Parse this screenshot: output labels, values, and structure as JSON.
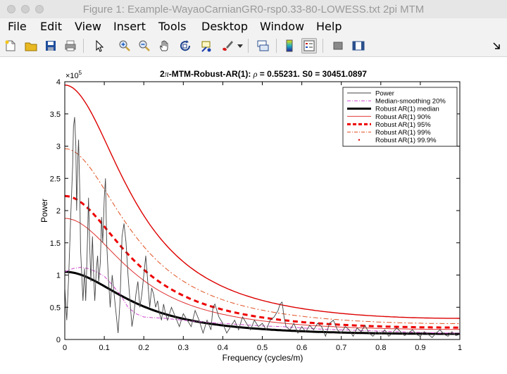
{
  "window": {
    "title": "Figure 1: Example-WayaoCarnianGR0-rsp0.33-80-LOWESS.txt 2pi MTM"
  },
  "menu": [
    "File",
    "Edit",
    "View",
    "Insert",
    "Tools",
    "Desktop",
    "Window",
    "Help"
  ],
  "toolbar": [
    {
      "name": "new-figure-icon"
    },
    {
      "name": "open-file-icon"
    },
    {
      "name": "save-icon"
    },
    {
      "name": "print-icon"
    },
    {
      "name": "pointer-icon"
    },
    {
      "name": "zoom-in-icon"
    },
    {
      "name": "zoom-out-icon"
    },
    {
      "name": "pan-hand-icon"
    },
    {
      "name": "rotate-3d-icon"
    },
    {
      "name": "data-cursor-icon"
    },
    {
      "name": "brush-icon"
    },
    {
      "name": "brush-dropdown-icon"
    },
    {
      "name": "link-plot-icon"
    },
    {
      "name": "colorbar-icon"
    },
    {
      "name": "legend-icon"
    },
    {
      "name": "hide-plot-tools-icon"
    },
    {
      "name": "show-plot-tools-icon"
    },
    {
      "name": "dock-arrow-icon"
    }
  ],
  "chart_data": {
    "type": "line",
    "title_prefix": "2",
    "title_pi": "π",
    "title_main": "-MTM-Robust-AR(1): ",
    "title_rho": "ρ",
    "title_rest": " = 0.55231. S0 = 30451.0897",
    "xlabel": "Frequency (cycles/m)",
    "ylabel": "Power",
    "exponent_base": "×10",
    "exponent_power": "5",
    "xlim": [
      0,
      1
    ],
    "ylim": [
      0,
      400000
    ],
    "xticks": [
      "0",
      "0.1",
      "0.2",
      "0.3",
      "0.4",
      "0.5",
      "0.6",
      "0.7",
      "0.8",
      "0.9",
      "1"
    ],
    "yticks": [
      "0",
      "0.5",
      "1",
      "1.5",
      "2",
      "2.5",
      "3",
      "3.5",
      "4"
    ],
    "legend_position": "top-right",
    "legend": [
      "Power",
      "Median-smoothing 20%",
      "Robust AR(1) median",
      "Robust AR(1) 90%",
      "Robust AR(1) 95%",
      "Robust AR(1) 99%",
      "Robust AR(1) 99.9%"
    ],
    "series": [
      {
        "name": "Power",
        "color": "#444444",
        "points": [
          [
            0,
            80000
          ],
          [
            0.005,
            30000
          ],
          [
            0.01,
            100000
          ],
          [
            0.015,
            190000
          ],
          [
            0.02,
            270000
          ],
          [
            0.022,
            330000
          ],
          [
            0.025,
            345000
          ],
          [
            0.028,
            300000
          ],
          [
            0.03,
            200000
          ],
          [
            0.033,
            280000
          ],
          [
            0.035,
            310000
          ],
          [
            0.038,
            230000
          ],
          [
            0.04,
            140000
          ],
          [
            0.043,
            100000
          ],
          [
            0.046,
            60000
          ],
          [
            0.05,
            110000
          ],
          [
            0.053,
            60000
          ],
          [
            0.056,
            120000
          ],
          [
            0.06,
            220000
          ],
          [
            0.063,
            150000
          ],
          [
            0.066,
            90000
          ],
          [
            0.07,
            160000
          ],
          [
            0.073,
            100000
          ],
          [
            0.076,
            60000
          ],
          [
            0.08,
            110000
          ],
          [
            0.083,
            130000
          ],
          [
            0.086,
            90000
          ],
          [
            0.09,
            120000
          ],
          [
            0.093,
            190000
          ],
          [
            0.096,
            150000
          ],
          [
            0.1,
            220000
          ],
          [
            0.103,
            250000
          ],
          [
            0.106,
            150000
          ],
          [
            0.11,
            100000
          ],
          [
            0.115,
            50000
          ],
          [
            0.12,
            100000
          ],
          [
            0.125,
            70000
          ],
          [
            0.13,
            40000
          ],
          [
            0.135,
            10000
          ],
          [
            0.14,
            60000
          ],
          [
            0.145,
            160000
          ],
          [
            0.15,
            180000
          ],
          [
            0.155,
            150000
          ],
          [
            0.16,
            100000
          ],
          [
            0.165,
            60000
          ],
          [
            0.17,
            20000
          ],
          [
            0.175,
            40000
          ],
          [
            0.18,
            70000
          ],
          [
            0.185,
            90000
          ],
          [
            0.19,
            50000
          ],
          [
            0.195,
            70000
          ],
          [
            0.2,
            100000
          ],
          [
            0.205,
            130000
          ],
          [
            0.21,
            90000
          ],
          [
            0.215,
            50000
          ],
          [
            0.22,
            80000
          ],
          [
            0.225,
            70000
          ],
          [
            0.23,
            50000
          ],
          [
            0.235,
            60000
          ],
          [
            0.24,
            40000
          ],
          [
            0.245,
            30000
          ],
          [
            0.25,
            55000
          ],
          [
            0.255,
            40000
          ],
          [
            0.26,
            30000
          ],
          [
            0.27,
            50000
          ],
          [
            0.28,
            35000
          ],
          [
            0.29,
            20000
          ],
          [
            0.3,
            40000
          ],
          [
            0.31,
            30000
          ],
          [
            0.32,
            20000
          ],
          [
            0.33,
            45000
          ],
          [
            0.34,
            30000
          ],
          [
            0.35,
            10000
          ],
          [
            0.36,
            30000
          ],
          [
            0.37,
            15000
          ],
          [
            0.375,
            50000
          ],
          [
            0.38,
            55000
          ],
          [
            0.39,
            35000
          ],
          [
            0.4,
            25000
          ],
          [
            0.41,
            10000
          ],
          [
            0.42,
            20000
          ],
          [
            0.43,
            30000
          ],
          [
            0.44,
            15000
          ],
          [
            0.45,
            35000
          ],
          [
            0.46,
            25000
          ],
          [
            0.47,
            15000
          ],
          [
            0.48,
            30000
          ],
          [
            0.49,
            20000
          ],
          [
            0.5,
            25000
          ],
          [
            0.51,
            15000
          ],
          [
            0.52,
            30000
          ],
          [
            0.53,
            35000
          ],
          [
            0.54,
            45000
          ],
          [
            0.545,
            55000
          ],
          [
            0.55,
            58000
          ],
          [
            0.555,
            35000
          ],
          [
            0.56,
            20000
          ],
          [
            0.57,
            15000
          ],
          [
            0.58,
            25000
          ],
          [
            0.59,
            10000
          ],
          [
            0.6,
            20000
          ],
          [
            0.61,
            12000
          ],
          [
            0.62,
            22000
          ],
          [
            0.63,
            15000
          ],
          [
            0.64,
            25000
          ],
          [
            0.65,
            20000
          ],
          [
            0.66,
            5000
          ],
          [
            0.67,
            25000
          ],
          [
            0.68,
            30000
          ],
          [
            0.69,
            15000
          ],
          [
            0.7,
            10000
          ],
          [
            0.71,
            20000
          ],
          [
            0.72,
            15000
          ],
          [
            0.73,
            5000
          ],
          [
            0.74,
            18000
          ],
          [
            0.75,
            12000
          ],
          [
            0.76,
            22000
          ],
          [
            0.77,
            10000
          ],
          [
            0.78,
            5000
          ],
          [
            0.79,
            12000
          ],
          [
            0.8,
            8000
          ],
          [
            0.81,
            15000
          ],
          [
            0.82,
            5000
          ],
          [
            0.83,
            10000
          ],
          [
            0.84,
            18000
          ],
          [
            0.85,
            12000
          ],
          [
            0.86,
            6000
          ],
          [
            0.87,
            10000
          ],
          [
            0.88,
            15000
          ],
          [
            0.89,
            8000
          ],
          [
            0.9,
            5000
          ],
          [
            0.91,
            12000
          ],
          [
            0.92,
            8000
          ],
          [
            0.93,
            3000
          ],
          [
            0.94,
            10000
          ],
          [
            0.95,
            15000
          ],
          [
            0.96,
            8000
          ],
          [
            0.97,
            5000
          ],
          [
            0.98,
            12000
          ],
          [
            0.99,
            6000
          ],
          [
            1,
            8000
          ]
        ]
      },
      {
        "name": "Median-smoothing 20%",
        "color": "#cc44cc",
        "points": [
          [
            0,
            105000
          ],
          [
            0.02,
            110000
          ],
          [
            0.04,
            112000
          ],
          [
            0.06,
            110000
          ],
          [
            0.08,
            105000
          ],
          [
            0.1,
            98000
          ],
          [
            0.12,
            85000
          ],
          [
            0.14,
            70000
          ],
          [
            0.16,
            50000
          ],
          [
            0.18,
            40000
          ],
          [
            0.2,
            35000
          ],
          [
            0.22,
            34000
          ],
          [
            0.25,
            33000
          ],
          [
            0.3,
            30000
          ],
          [
            0.35,
            27000
          ],
          [
            0.4,
            25000
          ],
          [
            0.45,
            23000
          ],
          [
            0.5,
            21000
          ],
          [
            0.55,
            20000
          ],
          [
            0.6,
            18000
          ],
          [
            0.65,
            16000
          ],
          [
            0.7,
            15000
          ],
          [
            0.75,
            14000
          ],
          [
            0.8,
            13000
          ],
          [
            0.85,
            12000
          ],
          [
            0.9,
            11000
          ],
          [
            0.95,
            10000
          ],
          [
            1,
            10000
          ]
        ]
      }
    ],
    "ar1_model": {
      "S0": 30451.0897,
      "rho": 0.55231,
      "median_at_zero": 105000
    },
    "ar1_levels": [
      {
        "name": "Robust AR(1) median",
        "multiplier": 1.0,
        "color": "#000000",
        "style": "solid-thick"
      },
      {
        "name": "Robust AR(1) 90%",
        "multiplier": 1.79,
        "color": "#e03030",
        "style": "solid-thin"
      },
      {
        "name": "Robust AR(1) 95%",
        "multiplier": 2.12,
        "color": "#ee0000",
        "style": "dashed-thick"
      },
      {
        "name": "Robust AR(1) 99%",
        "multiplier": 2.82,
        "color": "#e05020",
        "style": "dashdot"
      },
      {
        "name": "Robust AR(1) 99.9%",
        "multiplier": 3.76,
        "color": "#dd0000",
        "style": "dotted"
      }
    ]
  }
}
